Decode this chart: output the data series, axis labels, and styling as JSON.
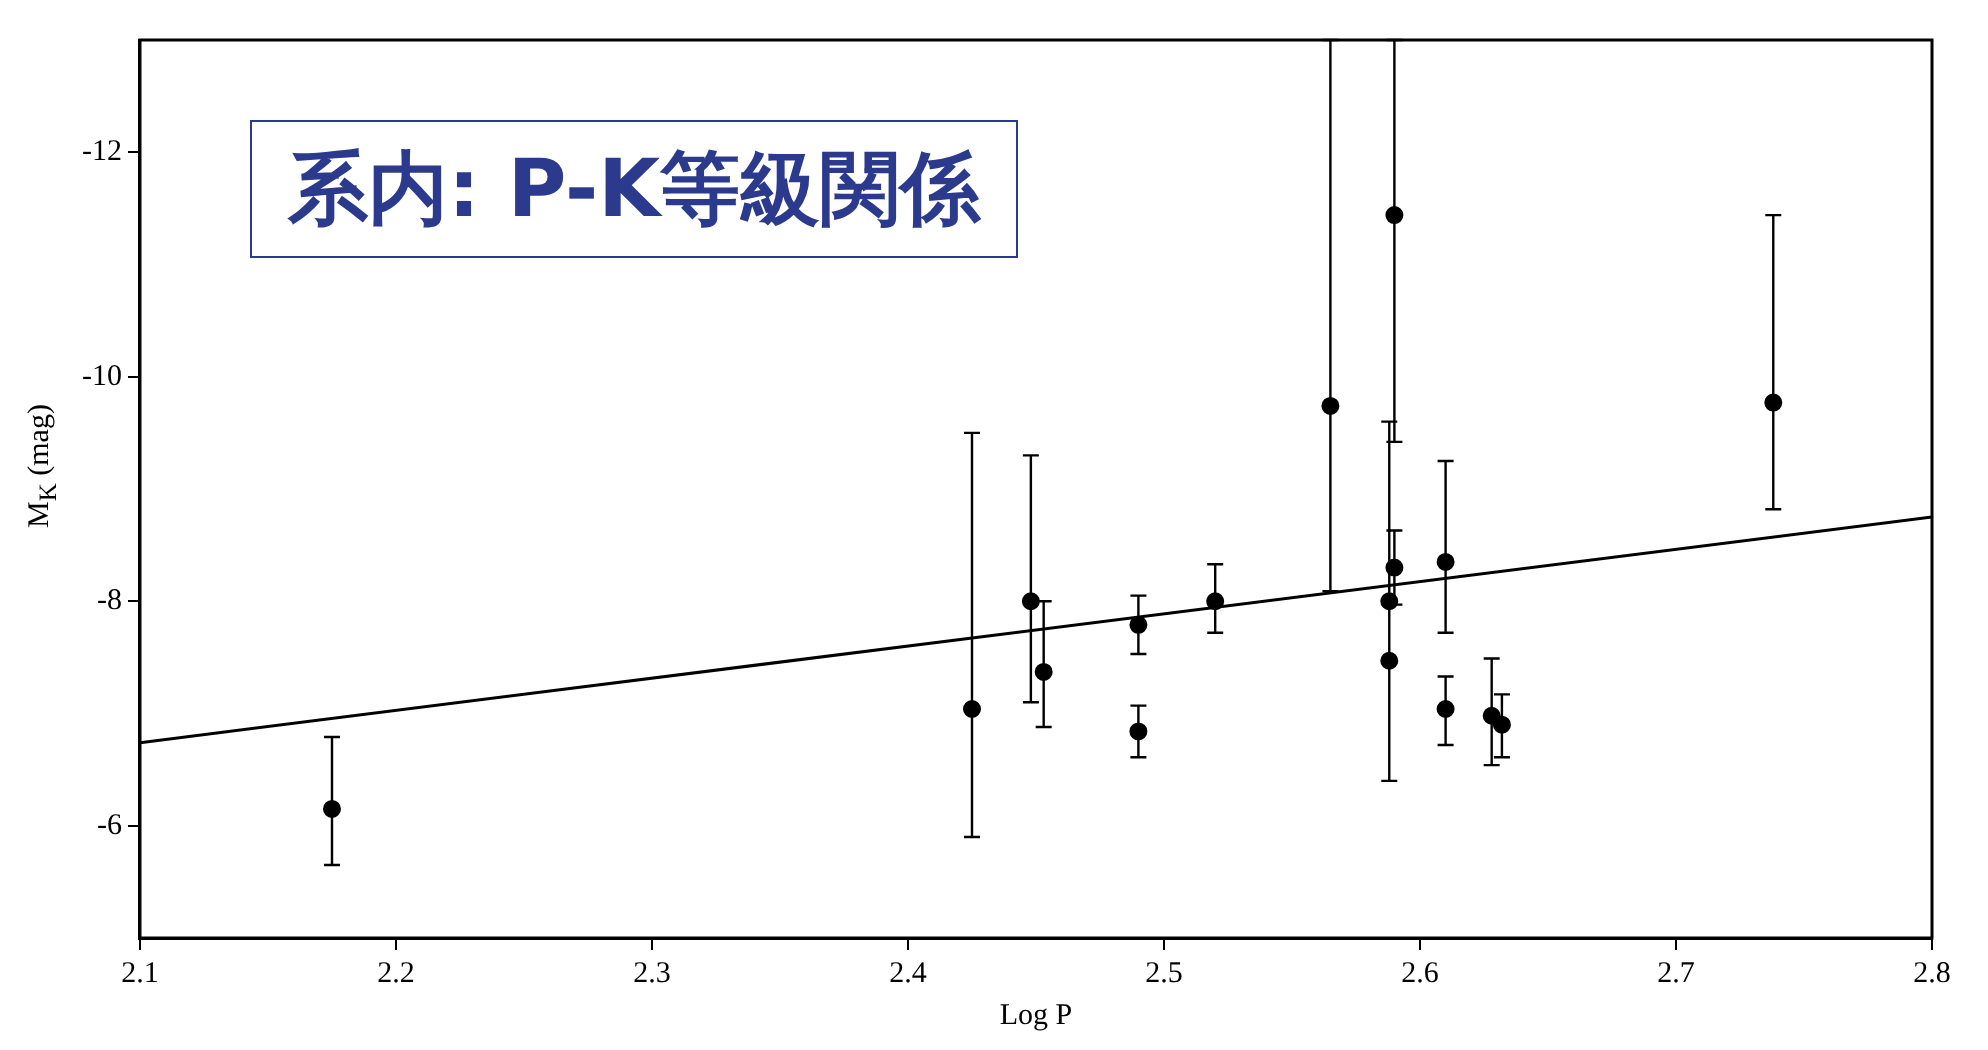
{
  "chart_data": {
    "type": "scatter",
    "title": "系内: P-K等級関係",
    "xlabel": "Log P",
    "ylabel": "M$_{K}$ (mag)",
    "xlim": [
      2.1,
      2.8
    ],
    "xticks": [
      2.1,
      2.2,
      2.3,
      2.4,
      2.5,
      2.6,
      2.7,
      2.8
    ],
    "ylim": [
      -5,
      -13
    ],
    "yticks": [
      -12,
      -10,
      -8,
      -6
    ],
    "grid": false,
    "legend": false,
    "series": [
      {
        "type": "scatter",
        "marker": "circle",
        "color": "#000000",
        "x": [
          2.175,
          2.425,
          2.448,
          2.453,
          2.49,
          2.49,
          2.52,
          2.565,
          2.59,
          2.588,
          2.59,
          2.588,
          2.61,
          2.61,
          2.628,
          2.632,
          2.738
        ],
        "values": [
          -6.15,
          -7.04,
          -8.0,
          -7.37,
          -7.79,
          -6.84,
          -8.0,
          -9.74,
          -11.44,
          -7.47,
          -8.3,
          -8.0,
          -8.35,
          -7.04,
          -6.98,
          -6.9,
          -9.77
        ],
        "errors": [
          [
            -6.79,
            -5.65
          ],
          [
            -9.5,
            -5.9
          ],
          [
            -9.3,
            -7.1
          ],
          [
            -8.0,
            -6.88
          ],
          [
            -8.05,
            -7.53
          ],
          [
            -7.07,
            -6.61
          ],
          [
            -8.33,
            -7.72
          ],
          [
            -13,
            -8.09
          ],
          [
            -13,
            -9.42
          ],
          [
            -9.6,
            -6.4
          ],
          [
            -8.63,
            -7.97
          ],
          null,
          [
            -9.25,
            -7.72
          ],
          [
            -7.33,
            -6.72
          ],
          [
            -7.49,
            -6.54
          ],
          [
            -7.17,
            -6.61
          ],
          [
            -11.44,
            -8.82
          ]
        ]
      },
      {
        "type": "line",
        "marker": "none",
        "color": "#000000",
        "x": [
          2.1,
          2.8
        ],
        "values": [
          -6.74,
          -8.75
        ]
      }
    ]
  }
}
